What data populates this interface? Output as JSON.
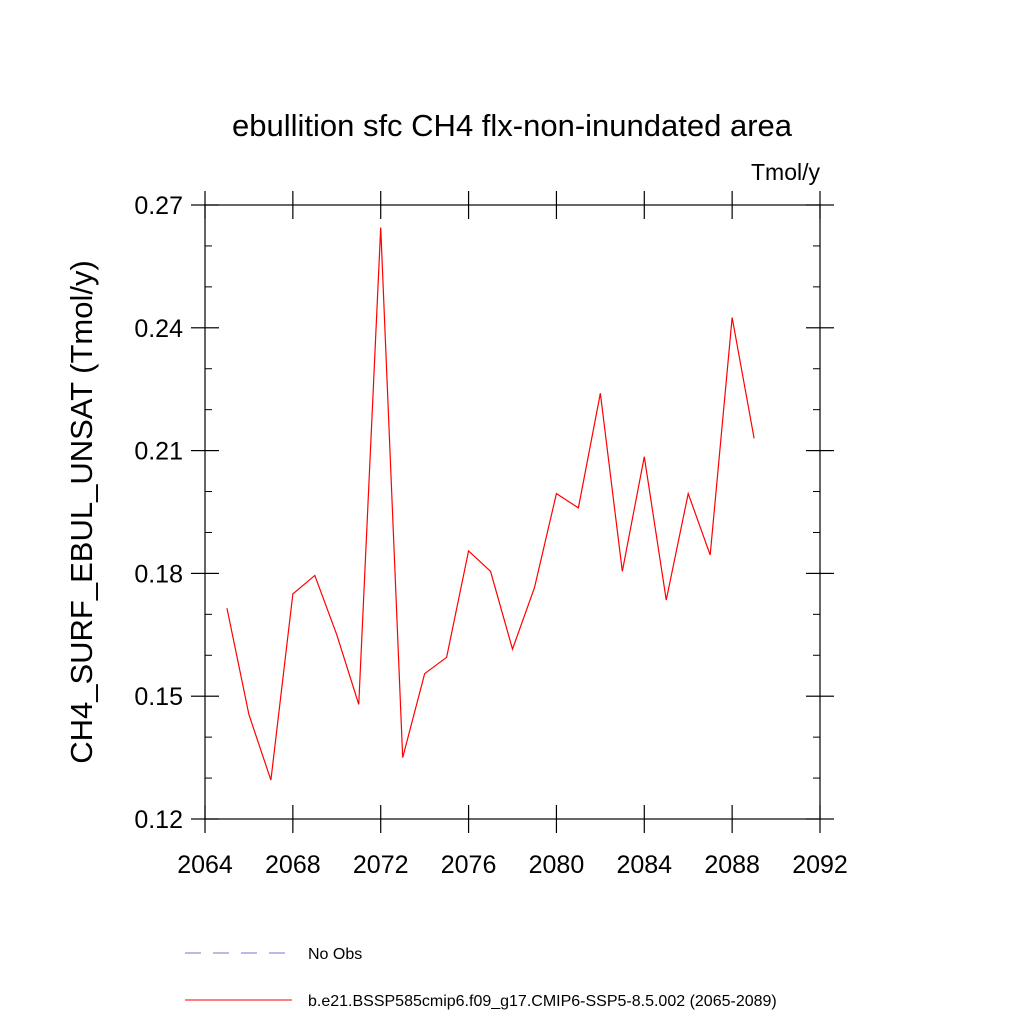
{
  "chart_data": {
    "type": "line",
    "title": "ebullition sfc CH4 flx-non-inundated area",
    "units_label": "Tmol/y",
    "ylabel": "CH4_SURF_EBUL_UNSAT  (Tmol/y)",
    "xlabel": "",
    "xlim": [
      2064,
      2092
    ],
    "ylim": [
      0.12,
      0.27
    ],
    "x_ticks": [
      2064,
      2068,
      2072,
      2076,
      2080,
      2084,
      2088,
      2092
    ],
    "x_tick_labels": [
      "2064",
      "2068",
      "2072",
      "2076",
      "2080",
      "2084",
      "2088",
      "2092"
    ],
    "y_ticks": [
      0.12,
      0.15,
      0.18,
      0.21,
      0.24,
      0.27
    ],
    "y_tick_labels": [
      "0.12",
      "0.15",
      "0.18",
      "0.21",
      "0.24",
      "0.27"
    ],
    "grid": false,
    "legend_position": "bottom",
    "series": [
      {
        "name": "b.e21.BSSP585cmip6.f09_g17.CMIP6-SSP5-8.5.002 (2065-2089)",
        "color": "#ff0000",
        "dash": "solid",
        "x": [
          2065,
          2066,
          2067,
          2068,
          2069,
          2070,
          2071,
          2072,
          2073,
          2074,
          2075,
          2076,
          2077,
          2078,
          2079,
          2080,
          2081,
          2082,
          2083,
          2084,
          2085,
          2086,
          2087,
          2088,
          2089
        ],
        "y": [
          0.1715,
          0.1455,
          0.1295,
          0.175,
          0.1795,
          0.165,
          0.148,
          0.2645,
          0.135,
          0.1555,
          0.1595,
          0.1855,
          0.1805,
          0.1615,
          0.1765,
          0.1995,
          0.196,
          0.224,
          0.1805,
          0.2085,
          0.1735,
          0.1995,
          0.1845,
          0.2425,
          0.213
        ]
      }
    ],
    "legend": [
      {
        "label": "No Obs",
        "color": "#7777cc",
        "dash": "dashed"
      },
      {
        "label": "b.e21.BSSP585cmip6.f09_g17.CMIP6-SSP5-8.5.002 (2065-2089)",
        "color": "#ff0000",
        "dash": "solid"
      }
    ]
  }
}
